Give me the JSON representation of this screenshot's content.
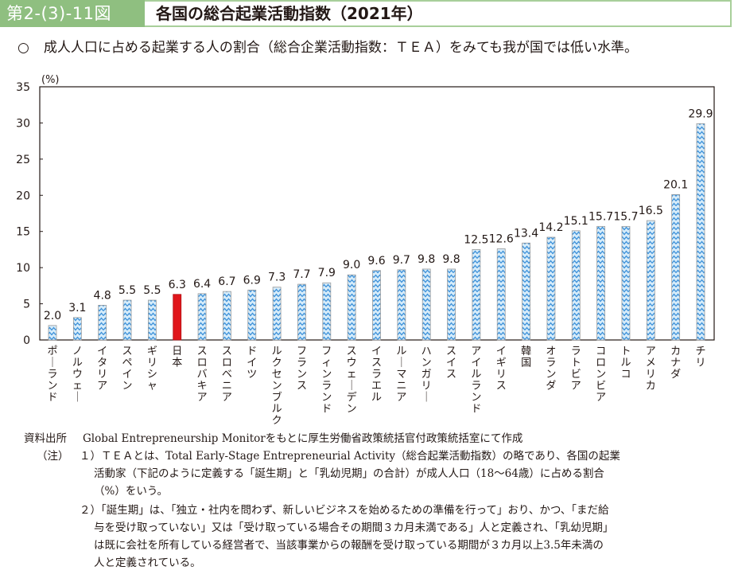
{
  "header": {
    "figure_number": "第2-(3)-11図",
    "title": "各国の総合起業活動指数（2021年）"
  },
  "subtitle": {
    "bullet": "○",
    "text": "成人人口に占める起業する人の割合（総合企業活動指数：ＴＥＡ）をみても我が国では低い水準。"
  },
  "colors": {
    "header_green": "#8fbf80",
    "header_border": "#a8cf9a",
    "bar_pattern_blue": "#3a8fd8",
    "bar_pattern_light": "#d6ecfa",
    "highlight_red": "#e0161b"
  },
  "chart_data": {
    "type": "bar",
    "title": "各国の総合起業活動指数（2021年）",
    "xlabel": "",
    "ylabel": "(%)",
    "ylim": [
      0,
      35
    ],
    "yticks": [
      0,
      5,
      10,
      15,
      20,
      25,
      30,
      35
    ],
    "grid": false,
    "legend": "none",
    "categories": [
      "ポーランド",
      "ノルウェー",
      "イタリア",
      "スペイン",
      "ギリシャ",
      "日本",
      "スロバキア",
      "スロベニア",
      "ドイツ",
      "ルクセンブルク",
      "フランス",
      "フィンランド",
      "スウェーデン",
      "イスラエル",
      "ルーマニア",
      "ハンガリー",
      "スイス",
      "アイルランド",
      "イギリス",
      "韓国",
      "オランダ",
      "ラトビア",
      "コロンビア",
      "トルコ",
      "アメリカ",
      "カナダ",
      "チリ"
    ],
    "values": [
      2.0,
      3.1,
      4.8,
      5.5,
      5.5,
      6.3,
      6.4,
      6.7,
      6.9,
      7.3,
      7.7,
      7.9,
      9.0,
      9.6,
      9.7,
      9.8,
      9.8,
      12.5,
      12.6,
      13.4,
      14.2,
      15.1,
      15.7,
      15.7,
      16.5,
      20.1,
      29.9
    ],
    "value_labels": [
      "2.0",
      "3.1",
      "4.8",
      "5.5",
      "5.5",
      "6.3",
      "6.4",
      "6.7",
      "6.9",
      "7.3",
      "7.7",
      "7.9",
      "9.0",
      "9.6",
      "9.7",
      "9.8",
      "9.8",
      "12.5",
      "12.6",
      "13.4",
      "14.2",
      "15.1",
      "15.7",
      "15.7",
      "16.5",
      "20.1",
      "29.9"
    ],
    "highlight_category": "日本"
  },
  "notes": {
    "source_label": "資料出所",
    "source_text": "Global Entrepreneurship Monitorをもとに厚生労働省政策統括官付政策統括室にて作成",
    "note_label": "（注）",
    "note1_lines": [
      "１）ＴＥＡとは、Total Early-Stage Entrepreneurial Activity（総合起業活動指数）の略であり、各国の起業",
      "活動家（下記のように定義する「誕生期」と「乳幼児期」の合計）が成人人口（18～64歳）に占める割合",
      "（%）をいう。"
    ],
    "note2_lines": [
      "２）「誕生期」は、「独立・社内を問わず、新しいビジネスを始めるための準備を行って」おり、かつ、「まだ給",
      "与を受け取っていない」又は「受け取っている場合その期間３カ月未満である」人と定義され、「乳幼児期」",
      "は既に会社を所有している経営者で、当該事業からの報酬を受け取っている期間が３カ月以上3.5年未満の",
      "人と定義されている。"
    ]
  }
}
